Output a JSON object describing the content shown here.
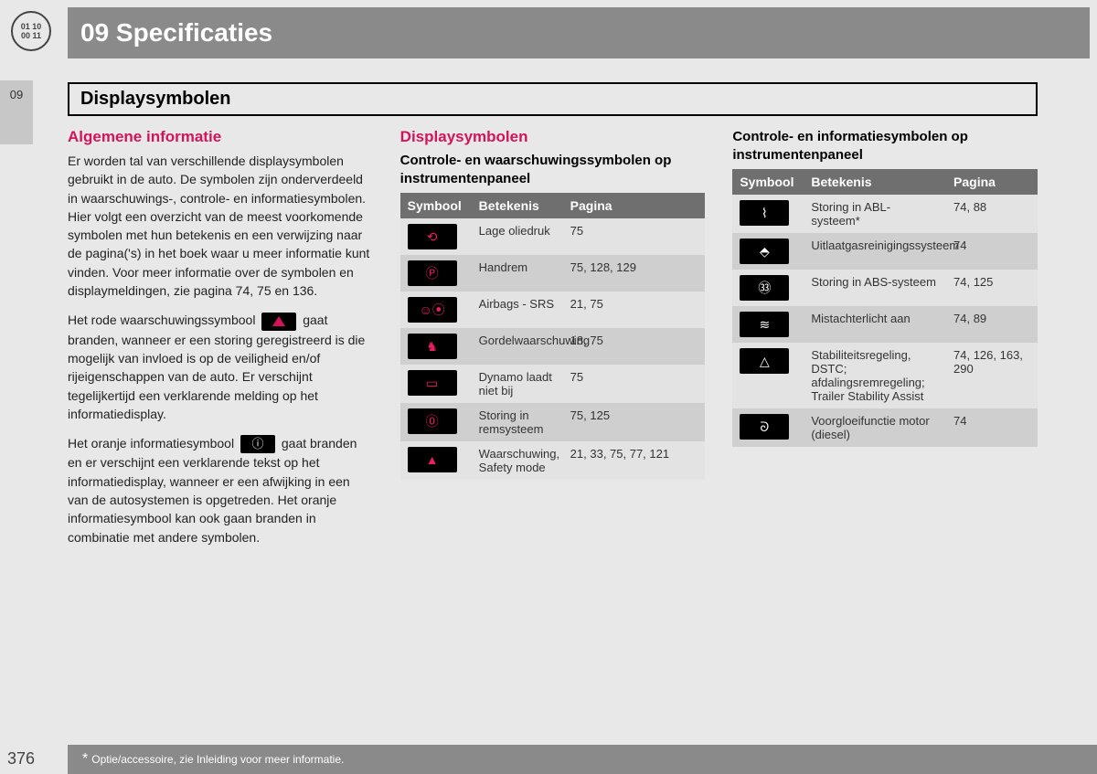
{
  "logo": {
    "line1": "01 10",
    "line2": "00 11"
  },
  "chapter": "09 Specificaties",
  "tab": "09",
  "section": "Displaysymbolen",
  "col1": {
    "heading": "Algemene informatie",
    "p1": "Er worden tal van verschillende displaysymbolen gebruikt in de auto. De symbolen zijn onderverdeeld in waarschuwings-, controle- en informatiesymbolen. Hier volgt een overzicht van de meest voorkomende symbolen met hun betekenis en een verwijzing naar de pagina('s) in het boek waar u meer informatie kunt vinden. Voor meer informatie over de symbolen en displaymeldingen, zie pagina 74, 75 en 136.",
    "p2a": "Het rode waarschuwingssymbool ",
    "p2b": " gaat branden, wanneer er een storing geregistreerd is die mogelijk van invloed is op de veiligheid en/of rijeigenschappen van de auto. Er verschijnt tegelijkertijd een verklarende melding op het informatiedisplay.",
    "p3a": "Het oranje informatiesymbool ",
    "p3b": " gaat branden en er verschijnt een verklarende tekst op het informatiedisplay, wanneer er een afwijking in een van de autosystemen is opgetreden. Het oranje informatiesymbool kan ook gaan branden in combinatie met andere symbolen."
  },
  "col2": {
    "heading": "Displaysymbolen",
    "sub": "Controle- en waarschuwingssymbolen op instrumentenpaneel",
    "headers": [
      "Symbool",
      "Betekenis",
      "Pagina"
    ],
    "rows": [
      {
        "icon": "oil",
        "glyph": "⟲",
        "meaning": "Lage oliedruk",
        "page": "75"
      },
      {
        "icon": "parking",
        "glyph": "Ⓟ",
        "meaning": "Handrem",
        "page": "75, 128, 129"
      },
      {
        "icon": "airbag",
        "glyph": "☺⦿",
        "meaning": "Airbags - SRS",
        "page": "21, 75"
      },
      {
        "icon": "seatbelt",
        "glyph": "♞",
        "meaning": "Gordelwaarschuwing",
        "page": "18, 75"
      },
      {
        "icon": "battery",
        "glyph": "▭",
        "meaning": "Dynamo laadt niet bij",
        "page": "75"
      },
      {
        "icon": "brake",
        "glyph": "⓪",
        "meaning": "Storing in remsysteem",
        "page": "75, 125"
      },
      {
        "icon": "warning",
        "glyph": "▲",
        "meaning": "Waarschuwing, Safety mode",
        "page": "21, 33, 75, 77, 121"
      }
    ]
  },
  "col3": {
    "sub": "Controle- en informatiesymbolen op instrumentenpaneel",
    "headers": [
      "Symbool",
      "Betekenis",
      "Pagina"
    ],
    "rows": [
      {
        "icon": "abl",
        "glyph": "⌇",
        "meaning": "Storing in ABL-systeem*",
        "page": "74, 88"
      },
      {
        "icon": "engine",
        "glyph": "⬘",
        "meaning": "Uitlaatgasreinigingssysteem",
        "page": "74"
      },
      {
        "icon": "abs",
        "glyph": "㉝",
        "meaning": "Storing in ABS-systeem",
        "page": "74, 125"
      },
      {
        "icon": "foglight",
        "glyph": "≋",
        "meaning": "Mistachterlicht aan",
        "page": "74, 89"
      },
      {
        "icon": "dstc",
        "glyph": "△",
        "meaning": "Stabiliteitsregeling, DSTC; afdalingsremregeling; Trailer Stability Assist",
        "page": "74, 126, 163, 290"
      },
      {
        "icon": "glow",
        "glyph": "ᘐ",
        "meaning": "Voorgloeifunctie motor (diesel)",
        "page": "74"
      }
    ]
  },
  "footer": "Optie/accessoire, zie Inleiding voor meer informatie.",
  "pageNumber": "376",
  "colWidths": {
    "symbool": "78px"
  }
}
